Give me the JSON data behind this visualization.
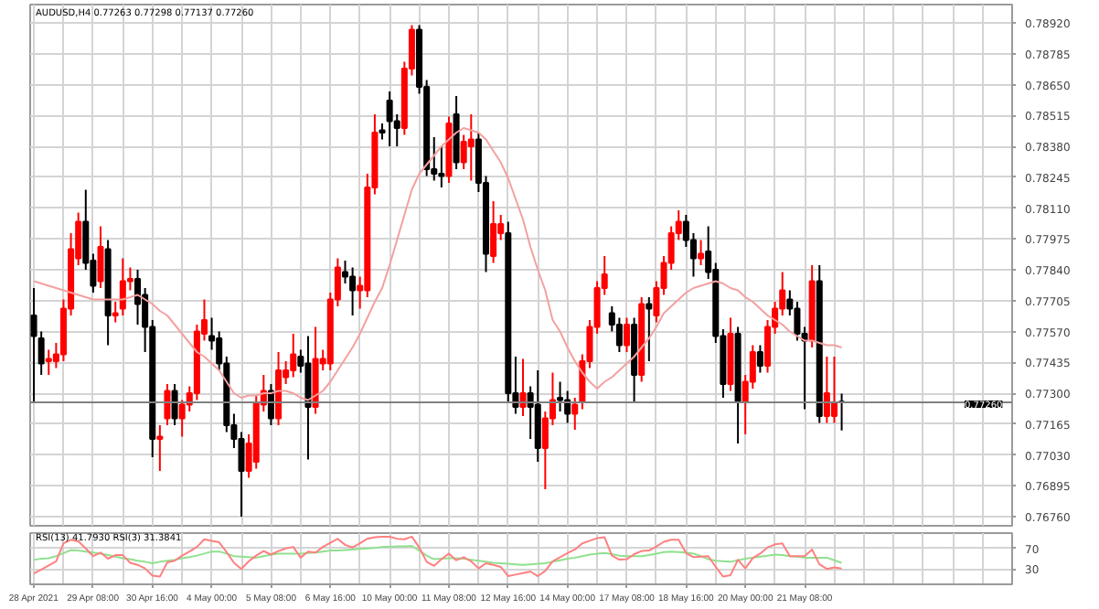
{
  "chart_data": [
    {
      "type": "candlestick",
      "title": "AUDUSD,H4 0.77263 0.77298 0.77137 0.77260",
      "categories": [
        null,
        null,
        null,
        null,
        null,
        null,
        null,
        null,
        null,
        null,
        null,
        null,
        null,
        null,
        null,
        null,
        null,
        null,
        null,
        null,
        null,
        null,
        null,
        null,
        null,
        null,
        null,
        null,
        null,
        null,
        null,
        null,
        null,
        null,
        null,
        null,
        null,
        null,
        null,
        null,
        null,
        null,
        null,
        null,
        null,
        null,
        null,
        null,
        null,
        null,
        null,
        null,
        null,
        null,
        null,
        null,
        null,
        null,
        null,
        null,
        null,
        null,
        null,
        null,
        null,
        null,
        null,
        null,
        null,
        null,
        null,
        null,
        null,
        null,
        null,
        null,
        null,
        null,
        null,
        null,
        null,
        null,
        null,
        null,
        null,
        null,
        null,
        null,
        null,
        null,
        null,
        null,
        null,
        null,
        null,
        null,
        null,
        null,
        null,
        null,
        null,
        null,
        null,
        null,
        null,
        null,
        null,
        null,
        null,
        null
      ],
      "ohlc": [
        [
          0.7764,
          0.7776,
          0.7726,
          0.7755
        ],
        [
          0.7754,
          0.7757,
          0.7738,
          0.7743
        ],
        [
          0.7744,
          0.7749,
          0.7738,
          0.7745
        ],
        [
          0.7744,
          0.7752,
          0.7741,
          0.7747
        ],
        [
          0.7747,
          0.7771,
          0.7744,
          0.7767
        ],
        [
          0.7767,
          0.78,
          0.7764,
          0.7793
        ],
        [
          0.7789,
          0.7809,
          0.7786,
          0.7805
        ],
        [
          0.7805,
          0.7819,
          0.7784,
          0.7787
        ],
        [
          0.7788,
          0.7791,
          0.7774,
          0.7777
        ],
        [
          0.7779,
          0.7803,
          0.7776,
          0.7794
        ],
        [
          0.7793,
          0.7797,
          0.7751,
          0.7764
        ],
        [
          0.7764,
          0.777,
          0.7761,
          0.7765
        ],
        [
          0.7767,
          0.7789,
          0.7764,
          0.7779
        ],
        [
          0.7779,
          0.7785,
          0.7775,
          0.778
        ],
        [
          0.778,
          0.7784,
          0.776,
          0.7769
        ],
        [
          0.7773,
          0.7776,
          0.7748,
          0.7759
        ],
        [
          0.7759,
          0.7762,
          0.7702,
          0.771
        ],
        [
          0.771,
          0.7716,
          0.7696,
          0.7711
        ],
        [
          0.7719,
          0.7734,
          0.7716,
          0.7731
        ],
        [
          0.7731,
          0.7734,
          0.7716,
          0.7719
        ],
        [
          0.7719,
          0.7727,
          0.7711,
          0.7725
        ],
        [
          0.7725,
          0.7733,
          0.7722,
          0.773
        ],
        [
          0.773,
          0.776,
          0.7727,
          0.7757
        ],
        [
          0.7756,
          0.7771,
          0.7753,
          0.7762
        ],
        [
          0.7755,
          0.7763,
          0.7749,
          0.7753
        ],
        [
          0.7754,
          0.7757,
          0.774,
          0.7743
        ],
        [
          0.7743,
          0.7746,
          0.7713,
          0.7716
        ],
        [
          0.7716,
          0.7721,
          0.7706,
          0.771
        ],
        [
          0.771,
          0.7713,
          0.7676,
          0.7696
        ],
        [
          0.7696,
          0.7712,
          0.7693,
          0.7708
        ],
        [
          0.77,
          0.7729,
          0.7697,
          0.7726
        ],
        [
          0.7725,
          0.7738,
          0.7722,
          0.7731
        ],
        [
          0.7731,
          0.7734,
          0.7716,
          0.7719
        ],
        [
          0.7719,
          0.7748,
          0.7716,
          0.774
        ],
        [
          0.7737,
          0.7744,
          0.7734,
          0.774
        ],
        [
          0.774,
          0.7756,
          0.7737,
          0.7747
        ],
        [
          0.7746,
          0.7749,
          0.7739,
          0.7742
        ],
        [
          0.7743,
          0.7755,
          0.7701,
          0.7724
        ],
        [
          0.7724,
          0.7759,
          0.7721,
          0.7745
        ],
        [
          0.7743,
          0.7749,
          0.774,
          0.7745
        ],
        [
          0.7743,
          0.7774,
          0.774,
          0.7771
        ],
        [
          0.7771,
          0.7789,
          0.7768,
          0.7785
        ],
        [
          0.7783,
          0.7788,
          0.7778,
          0.7781
        ],
        [
          0.7781,
          0.7785,
          0.7764,
          0.7775
        ],
        [
          0.7775,
          0.7781,
          0.7767,
          0.7777
        ],
        [
          0.7775,
          0.7826,
          0.7772,
          0.782
        ],
        [
          0.782,
          0.7852,
          0.7817,
          0.7844
        ],
        [
          0.7845,
          0.7848,
          0.7841,
          0.7844
        ],
        [
          0.7858,
          0.7862,
          0.7838,
          0.7849
        ],
        [
          0.7849,
          0.7852,
          0.7838,
          0.7846
        ],
        [
          0.7846,
          0.7875,
          0.7843,
          0.7872
        ],
        [
          0.7872,
          0.7891,
          0.7869,
          0.7889
        ],
        [
          0.7889,
          0.7891,
          0.7861,
          0.7864
        ],
        [
          0.7864,
          0.7867,
          0.7825,
          0.7828
        ],
        [
          0.7828,
          0.7842,
          0.7823,
          0.7826
        ],
        [
          0.7826,
          0.7838,
          0.782,
          0.7825
        ],
        [
          0.7825,
          0.7851,
          0.7822,
          0.7848
        ],
        [
          0.7852,
          0.786,
          0.7828,
          0.7831
        ],
        [
          0.7831,
          0.7843,
          0.7828,
          0.784
        ],
        [
          0.7838,
          0.7852,
          0.7823,
          0.7841
        ],
        [
          0.7841,
          0.7844,
          0.7818,
          0.7822
        ],
        [
          0.7822,
          0.7825,
          0.7783,
          0.7791
        ],
        [
          0.779,
          0.7814,
          0.7787,
          0.7804
        ],
        [
          0.78,
          0.7808,
          0.7797,
          0.7804
        ],
        [
          0.78,
          0.7805,
          0.7726,
          0.773
        ],
        [
          0.773,
          0.7746,
          0.7721,
          0.7724
        ],
        [
          0.7724,
          0.7745,
          0.772,
          0.773
        ],
        [
          0.773,
          0.7733,
          0.771,
          0.7724
        ],
        [
          0.7725,
          0.774,
          0.77,
          0.7706
        ],
        [
          0.7706,
          0.7722,
          0.7688,
          0.7719
        ],
        [
          0.7719,
          0.7739,
          0.7716,
          0.7727
        ],
        [
          0.7728,
          0.7735,
          0.7722,
          0.7727
        ],
        [
          0.7727,
          0.7731,
          0.7717,
          0.7721
        ],
        [
          0.7721,
          0.7728,
          0.7714,
          0.7725
        ],
        [
          0.7726,
          0.7747,
          0.7723,
          0.7744
        ],
        [
          0.7744,
          0.7762,
          0.7741,
          0.7759
        ],
        [
          0.7759,
          0.7779,
          0.7756,
          0.7776
        ],
        [
          0.7776,
          0.779,
          0.7773,
          0.7782
        ],
        [
          0.7765,
          0.7768,
          0.7757,
          0.776
        ],
        [
          0.776,
          0.7763,
          0.7748,
          0.7751
        ],
        [
          0.7751,
          0.7763,
          0.7748,
          0.776
        ],
        [
          0.776,
          0.7763,
          0.7726,
          0.7738
        ],
        [
          0.7738,
          0.7772,
          0.7735,
          0.7769
        ],
        [
          0.7769,
          0.7772,
          0.7744,
          0.7767
        ],
        [
          0.7764,
          0.7779,
          0.7761,
          0.7776
        ],
        [
          0.7776,
          0.779,
          0.7773,
          0.7787
        ],
        [
          0.7787,
          0.7803,
          0.7784,
          0.78
        ],
        [
          0.78,
          0.781,
          0.7797,
          0.7805
        ],
        [
          0.7805,
          0.7808,
          0.7794,
          0.7797
        ],
        [
          0.7797,
          0.78,
          0.7781,
          0.7789
        ],
        [
          0.7789,
          0.7797,
          0.7786,
          0.7791
        ],
        [
          0.7792,
          0.7803,
          0.778,
          0.7783
        ],
        [
          0.7784,
          0.7787,
          0.7752,
          0.7755
        ],
        [
          0.7755,
          0.7758,
          0.7728,
          0.7734
        ],
        [
          0.7734,
          0.7763,
          0.7731,
          0.7756
        ],
        [
          0.7756,
          0.7759,
          0.7708,
          0.7726
        ],
        [
          0.7726,
          0.7738,
          0.7712,
          0.7735
        ],
        [
          0.7735,
          0.7751,
          0.7732,
          0.7748
        ],
        [
          0.7748,
          0.7751,
          0.7739,
          0.7742
        ],
        [
          0.7742,
          0.7762,
          0.7739,
          0.7759
        ],
        [
          0.7759,
          0.777,
          0.7756,
          0.7767
        ],
        [
          0.7767,
          0.7783,
          0.7764,
          0.7775
        ],
        [
          0.7771,
          0.7775,
          0.7764,
          0.7767
        ],
        [
          0.7767,
          0.777,
          0.7753,
          0.7756
        ],
        [
          0.7756,
          0.7759,
          0.7723,
          0.7753
        ],
        [
          0.7753,
          0.7786,
          0.775,
          0.7779
        ],
        [
          0.7779,
          0.7786,
          0.7717,
          0.772
        ],
        [
          0.772,
          0.7746,
          0.7717,
          0.773
        ],
        [
          0.772,
          0.7746,
          0.7717,
          0.7726
        ],
        [
          0.77263,
          0.77298,
          0.77137,
          0.7726
        ]
      ],
      "colors": [
        "#000000",
        "#000000",
        "#ff0000",
        "#ff0000",
        "#ff0000",
        "#ff0000",
        "#ff0000",
        "#000000",
        "#000000",
        "#ff0000",
        "#000000",
        "#ff0000",
        "#ff0000",
        "#ff0000",
        "#000000",
        "#000000",
        "#000000",
        "#ff0000",
        "#ff0000",
        "#000000",
        "#ff0000",
        "#ff0000",
        "#ff0000",
        "#ff0000",
        "#000000",
        "#000000",
        "#000000",
        "#000000",
        "#000000",
        "#ff0000",
        "#ff0000",
        "#ff0000",
        "#000000",
        "#ff0000",
        "#ff0000",
        "#ff0000",
        "#000000",
        "#000000",
        "#ff0000",
        "#ff0000",
        "#ff0000",
        "#ff0000",
        "#000000",
        "#000000",
        "#ff0000",
        "#ff0000",
        "#ff0000",
        "#000000",
        "#000000",
        "#000000",
        "#ff0000",
        "#ff0000",
        "#000000",
        "#000000",
        "#000000",
        "#000000",
        "#ff0000",
        "#000000",
        "#ff0000",
        "#ff0000",
        "#000000",
        "#000000",
        "#ff0000",
        "#ff0000",
        "#000000",
        "#000000",
        "#ff0000",
        "#000000",
        "#000000",
        "#ff0000",
        "#ff0000",
        "#000000",
        "#000000",
        "#ff0000",
        "#ff0000",
        "#ff0000",
        "#ff0000",
        "#ff0000",
        "#000000",
        "#000000",
        "#ff0000",
        "#000000",
        "#ff0000",
        "#000000",
        "#ff0000",
        "#ff0000",
        "#ff0000",
        "#ff0000",
        "#000000",
        "#000000",
        "#ff0000",
        "#000000",
        "#000000",
        "#000000",
        "#ff0000",
        "#000000",
        "#ff0000",
        "#ff0000",
        "#000000",
        "#ff0000",
        "#ff0000",
        "#ff0000",
        "#000000",
        "#000000",
        "#000000",
        "#ff0000",
        "#000000",
        "#ff0000",
        "#ff0000",
        "#000000"
      ],
      "series": [
        {
          "type": "line",
          "color": "#f4a0a0",
          "values": [
            0.7779,
            0.7778,
            0.7777,
            0.7776,
            0.7775,
            0.7774,
            0.7773,
            0.7772,
            0.7771,
            0.7771,
            0.7771,
            0.7771,
            0.7771,
            0.7772,
            0.7773,
            0.7771,
            0.7769,
            0.7766,
            0.7764,
            0.776,
            0.7756,
            0.7752,
            0.7748,
            0.7746,
            0.7743,
            0.774,
            0.7735,
            0.773,
            0.7728,
            0.7729,
            0.7729,
            0.773,
            0.773,
            0.7731,
            0.7731,
            0.773,
            0.7728,
            0.7727,
            0.7729,
            0.7731,
            0.7735,
            0.774,
            0.7745,
            0.775,
            0.7756,
            0.7763,
            0.777,
            0.7776,
            0.7786,
            0.7797,
            0.7808,
            0.7819,
            0.7826,
            0.783,
            0.7834,
            0.7838,
            0.7841,
            0.7844,
            0.7846,
            0.7845,
            0.7844,
            0.7841,
            0.7836,
            0.7831,
            0.7824,
            0.7815,
            0.7806,
            0.7794,
            0.7784,
            0.7775,
            0.7762,
            0.7757,
            0.775,
            0.7744,
            0.7739,
            0.7735,
            0.7732,
            0.7735,
            0.7737,
            0.774,
            0.7743,
            0.7746,
            0.775,
            0.7754,
            0.7759,
            0.7765,
            0.7768,
            0.7771,
            0.7774,
            0.7776,
            0.7777,
            0.7778,
            0.7779,
            0.7778,
            0.7776,
            0.7775,
            0.7772,
            0.777,
            0.7767,
            0.7764,
            0.7762,
            0.776,
            0.7757,
            0.7755,
            0.7753,
            0.7753,
            0.7752,
            0.7751,
            0.7751,
            0.775
          ]
        }
      ],
      "ylim": [
        0.7672,
        0.79
      ],
      "yticks": [
        {
          "value": 0.7676,
          "label": "0.76760"
        },
        {
          "value": 0.76895,
          "label": "0.76895"
        },
        {
          "value": 0.7703,
          "label": "0.77030"
        },
        {
          "value": 0.77165,
          "label": "0.77165"
        },
        {
          "value": 0.773,
          "label": "0.77300"
        },
        {
          "value": 0.77435,
          "label": "0.77435"
        },
        {
          "value": 0.7757,
          "label": "0.77570"
        },
        {
          "value": 0.77705,
          "label": "0.77705"
        },
        {
          "value": 0.7784,
          "label": "0.77840"
        },
        {
          "value": 0.77975,
          "label": "0.77975"
        },
        {
          "value": 0.7811,
          "label": "0.78110"
        },
        {
          "value": 0.78245,
          "label": "0.78245"
        },
        {
          "value": 0.7838,
          "label": "0.78380"
        },
        {
          "value": 0.78515,
          "label": "0.78515"
        },
        {
          "value": 0.7865,
          "label": "0.78650"
        },
        {
          "value": 0.78785,
          "label": "0.78785"
        },
        {
          "value": 0.7892,
          "label": "0.78920"
        }
      ],
      "grid": true,
      "tick_labels": "y",
      "ref_lines": [
        {
          "axis": "y",
          "value": 0.7726,
          "label": "0.77260",
          "color": "#808080"
        }
      ]
    },
    {
      "type": "line",
      "title": "RSI(13) 41.7930 RSI(3) 31.3841",
      "categories": [
        "28 Apr 2021",
        null,
        null,
        null,
        null,
        null,
        null,
        null,
        "29 Apr 08:00",
        null,
        null,
        null,
        null,
        null,
        null,
        null,
        "30 Apr 16:00",
        null,
        null,
        null,
        null,
        null,
        null,
        null,
        "4 May 00:00",
        null,
        null,
        null,
        null,
        null,
        null,
        null,
        "5 May 08:00",
        null,
        null,
        null,
        null,
        null,
        null,
        null,
        "6 May 16:00",
        null,
        null,
        null,
        null,
        null,
        null,
        null,
        "10 May 00:00",
        null,
        null,
        null,
        null,
        null,
        null,
        null,
        "11 May 08:00",
        null,
        null,
        null,
        null,
        null,
        null,
        null,
        "12 May 16:00",
        null,
        null,
        null,
        null,
        null,
        null,
        null,
        "14 May 00:00",
        null,
        null,
        null,
        null,
        null,
        null,
        null,
        "17 May 08:00",
        null,
        null,
        null,
        null,
        null,
        null,
        null,
        "18 May 16:00",
        null,
        null,
        null,
        null,
        null,
        null,
        null,
        "20 May 00:00",
        null,
        null,
        null,
        null,
        null,
        null,
        null,
        "21 May 08:00",
        null,
        null,
        null,
        null,
        null
      ],
      "series": [
        {
          "color": "#90e090",
          "values": [
            48,
            50,
            51,
            55,
            61,
            67,
            66,
            64,
            62,
            60,
            57,
            54,
            51,
            49,
            46,
            44,
            41,
            44,
            46,
            48,
            51,
            53,
            56,
            60,
            64,
            64,
            60,
            55,
            54,
            53,
            52,
            55,
            58,
            60,
            60,
            60,
            60,
            61,
            62,
            64,
            66,
            66,
            67,
            68,
            69,
            70,
            71,
            73,
            73,
            74,
            74,
            75,
            66,
            56,
            49,
            50,
            51,
            51,
            50,
            48,
            46,
            44,
            42,
            41,
            40,
            39,
            38,
            39,
            40,
            41,
            44,
            47,
            50,
            52,
            55,
            58,
            60,
            61,
            59,
            56,
            55,
            55,
            55,
            57,
            60,
            63,
            64,
            63,
            62,
            60,
            55,
            49,
            46,
            45,
            44,
            47,
            50,
            52,
            54,
            56,
            58,
            57,
            55,
            54,
            52,
            52,
            52,
            52,
            47,
            42
          ]
        },
        {
          "color": "#ff8080",
          "values": [
            21,
            29,
            37,
            45,
            80,
            87,
            84,
            70,
            55,
            62,
            50,
            57,
            57,
            42,
            38,
            31,
            17,
            15,
            43,
            46,
            56,
            64,
            73,
            88,
            85,
            82,
            63,
            42,
            30,
            45,
            56,
            65,
            58,
            65,
            70,
            73,
            52,
            64,
            62,
            73,
            81,
            89,
            77,
            72,
            80,
            89,
            92,
            93,
            93,
            89,
            88,
            93,
            72,
            44,
            36,
            49,
            60,
            47,
            53,
            45,
            31,
            41,
            38,
            34,
            16,
            19,
            22,
            25,
            16,
            26,
            45,
            53,
            61,
            68,
            80,
            85,
            90,
            92,
            56,
            48,
            49,
            59,
            65,
            66,
            74,
            83,
            87,
            87,
            61,
            53,
            54,
            55,
            34,
            15,
            18,
            48,
            31,
            51,
            60,
            72,
            78,
            80,
            55,
            55,
            55,
            68,
            39,
            30,
            33,
            31
          ]
        }
      ],
      "ylim": [
        0,
        100
      ],
      "yticks": [
        30,
        70
      ],
      "grid": true
    }
  ]
}
